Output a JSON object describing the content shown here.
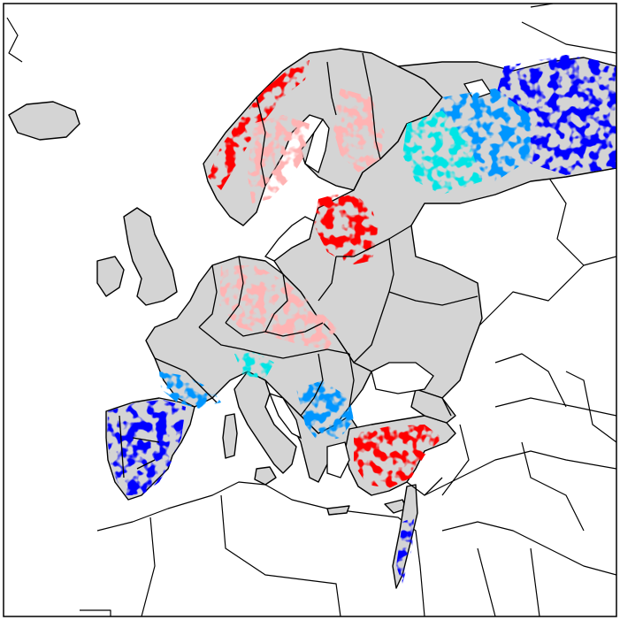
{
  "map": {
    "colors": {
      "background": "#ffffff",
      "land_no_data": "#d4d4d4",
      "border": "#000000",
      "strong_increase": "#ff0000",
      "weak_increase": "#ffb3b3",
      "strong_decrease": "#0000ff",
      "medium_decrease": "#0096ff",
      "weak_decrease": "#00e5e5"
    },
    "patches": [
      {
        "name": "scandinavia-west-coast",
        "cls": "strong_increase"
      },
      {
        "name": "scandinavia-interior",
        "cls": "weak_increase"
      },
      {
        "name": "finland-south",
        "cls": "weak_increase"
      },
      {
        "name": "baltics-belarus",
        "cls": "strong_increase"
      },
      {
        "name": "central-europe",
        "cls": "weak_increase"
      },
      {
        "name": "turkey-anatolia",
        "cls": "strong_increase"
      },
      {
        "name": "russia-northeast",
        "cls": "strong_decrease"
      },
      {
        "name": "russia-north",
        "cls": "medium_decrease"
      },
      {
        "name": "russia-northwest",
        "cls": "weak_decrease"
      },
      {
        "name": "iberia",
        "cls": "strong_decrease"
      },
      {
        "name": "southern-france",
        "cls": "medium_decrease"
      },
      {
        "name": "italy-north",
        "cls": "weak_decrease"
      },
      {
        "name": "balkans",
        "cls": "medium_decrease"
      },
      {
        "name": "levant",
        "cls": "strong_decrease"
      }
    ]
  }
}
